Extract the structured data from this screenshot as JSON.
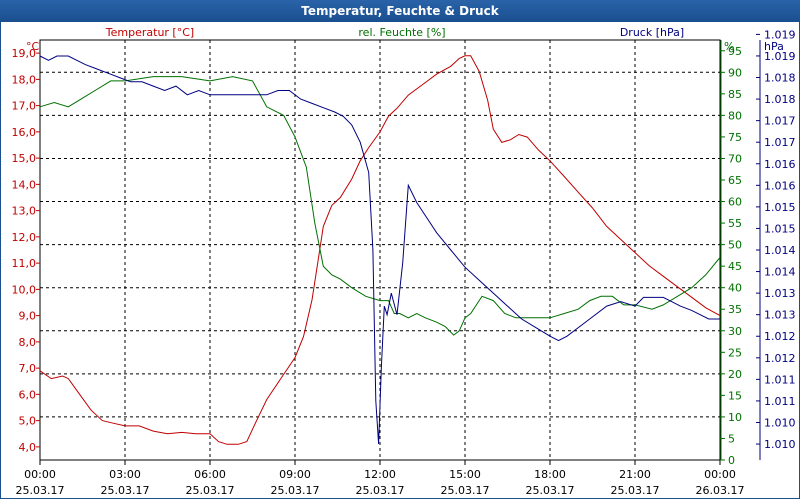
{
  "chart_data": {
    "type": "line",
    "title": "Temperatur, Feuchte & Druck",
    "x_label_time": [
      "00:00",
      "03:00",
      "06:00",
      "09:00",
      "12:00",
      "15:00",
      "18:00",
      "21:00",
      "00:00"
    ],
    "x_label_date": [
      "25.03.17",
      "25.03.17",
      "25.03.17",
      "25.03.17",
      "25.03.17",
      "25.03.17",
      "25.03.17",
      "25.03.17",
      "26.03.17"
    ],
    "xlim": [
      0,
      24
    ],
    "grid": true,
    "axes": {
      "temp": {
        "title": "Temperatur [°C]",
        "unit": "°C",
        "color": "#c00000",
        "range": [
          3.5,
          19.5
        ],
        "ticks": [
          "4,0",
          "5,0",
          "6,0",
          "7,0",
          "8,0",
          "9,0",
          "10,0",
          "11,0",
          "12,0",
          "13,0",
          "14,0",
          "15,0",
          "16,0",
          "17,0",
          "18,0",
          "19,0"
        ]
      },
      "hum": {
        "title": "rel. Feuchte [%]",
        "unit": "%",
        "color": "#007000",
        "range": [
          0,
          97.5
        ],
        "ticks": [
          "0",
          "5",
          "10",
          "15",
          "20",
          "25",
          "30",
          "35",
          "40",
          "45",
          "50",
          "55",
          "60",
          "65",
          "70",
          "75",
          "80",
          "85",
          "90",
          "95"
        ]
      },
      "press": {
        "title": "Druck [hPa]",
        "unit": "hPa",
        "color": "#000080",
        "range": [
          1009.63,
          1019.37
        ],
        "ticks": [
          "1.010",
          "1.010",
          "1.011",
          "1.011",
          "1.012",
          "1.012",
          "1.013",
          "1.013",
          "1.014",
          "1.014",
          "1.015",
          "1.015",
          "1.016",
          "1.016",
          "1.017",
          "1.017",
          "1.018",
          "1.018",
          "1.019",
          "1.019"
        ]
      }
    },
    "series": [
      {
        "name": "Temperatur [°C]",
        "axis": "temp",
        "color": "#c00000",
        "x": [
          0,
          0.4,
          0.8,
          1.0,
          1.4,
          1.8,
          2.2,
          2.6,
          3.0,
          3.5,
          4.0,
          4.5,
          5.0,
          5.5,
          6.0,
          6.3,
          6.6,
          7.0,
          7.3,
          7.6,
          8.0,
          8.5,
          9.0,
          9.3,
          9.6,
          9.8,
          10.0,
          10.3,
          10.6,
          11.0,
          11.3,
          11.6,
          12.0,
          12.3,
          12.6,
          13.0,
          13.5,
          14.0,
          14.5,
          14.8,
          15.0,
          15.2,
          15.5,
          15.8,
          16.0,
          16.3,
          16.6,
          16.9,
          17.2,
          17.6,
          18.0,
          18.5,
          19.0,
          19.5,
          20.0,
          20.5,
          21.0,
          21.5,
          22.0,
          22.5,
          23.0,
          23.5,
          24.0
        ],
        "values": [
          6.9,
          6.6,
          6.7,
          6.6,
          6.0,
          5.4,
          5.0,
          4.9,
          4.8,
          4.8,
          4.6,
          4.5,
          4.55,
          4.5,
          4.5,
          4.2,
          4.1,
          4.1,
          4.2,
          4.9,
          5.8,
          6.6,
          7.4,
          8.2,
          9.6,
          11.0,
          12.4,
          13.2,
          13.5,
          14.2,
          14.9,
          15.4,
          16.0,
          16.6,
          16.9,
          17.4,
          17.8,
          18.2,
          18.5,
          18.8,
          18.9,
          18.9,
          18.3,
          17.2,
          16.1,
          15.6,
          15.7,
          15.9,
          15.8,
          15.3,
          14.9,
          14.3,
          13.7,
          13.1,
          12.4,
          11.9,
          11.4,
          10.9,
          10.5,
          10.1,
          9.7,
          9.3,
          9.0
        ]
      },
      {
        "name": "rel. Feuchte [%]",
        "axis": "hum",
        "color": "#007000",
        "x": [
          0,
          0.5,
          1.0,
          1.5,
          2.0,
          2.5,
          3.0,
          4.0,
          5.0,
          6.0,
          6.8,
          7.5,
          8.0,
          8.6,
          9.0,
          9.4,
          9.7,
          10.0,
          10.3,
          10.6,
          11.0,
          11.5,
          12.0,
          12.3,
          12.5,
          12.7,
          13.0,
          13.3,
          13.6,
          14.0,
          14.3,
          14.6,
          14.8,
          15.0,
          15.2,
          15.6,
          16.0,
          16.4,
          16.8,
          17.3,
          18.0,
          18.5,
          19.0,
          19.4,
          19.8,
          20.2,
          20.6,
          21.0,
          21.6,
          22.0,
          22.5,
          23.0,
          23.5,
          24.0
        ],
        "values": [
          82,
          83,
          82,
          84,
          86,
          88,
          88,
          89,
          89,
          88,
          89,
          88,
          82,
          80,
          75,
          68,
          55,
          45,
          43,
          42,
          40,
          38,
          37,
          37,
          34,
          34,
          33,
          34,
          33,
          32,
          31,
          29,
          30,
          33,
          34,
          38,
          37,
          34,
          33,
          33,
          33,
          34,
          35,
          37,
          38,
          38,
          36,
          36,
          35,
          36,
          38,
          40,
          43,
          47
        ]
      },
      {
        "name": "Druck [hPa]",
        "axis": "press",
        "color": "#000080",
        "x": [
          0,
          0.3,
          0.6,
          1.0,
          1.3,
          1.6,
          2.0,
          2.4,
          2.8,
          3.2,
          3.6,
          4.0,
          4.4,
          4.8,
          5.2,
          5.6,
          6.0,
          6.4,
          6.8,
          7.2,
          7.6,
          8.0,
          8.4,
          8.8,
          9.2,
          9.6,
          10.0,
          10.4,
          10.7,
          11.0,
          11.3,
          11.6,
          11.75,
          11.85,
          11.95,
          12.05,
          12.15,
          12.25,
          12.4,
          12.6,
          12.8,
          13.0,
          13.3,
          13.6,
          14.0,
          14.5,
          15.0,
          15.5,
          16.0,
          16.5,
          17.0,
          17.5,
          18.0,
          18.3,
          18.6,
          19.0,
          19.4,
          20.0,
          20.5,
          21.0,
          21.3,
          21.6,
          22.0,
          22.3,
          22.6,
          23.0,
          23.3,
          23.6,
          24.0
        ],
        "values": [
          1019.0,
          1018.9,
          1019.0,
          1019.0,
          1018.9,
          1018.8,
          1018.7,
          1018.6,
          1018.5,
          1018.4,
          1018.4,
          1018.3,
          1018.2,
          1018.3,
          1018.1,
          1018.2,
          1018.1,
          1018.1,
          1018.1,
          1018.1,
          1018.1,
          1018.1,
          1018.2,
          1018.2,
          1018.0,
          1017.9,
          1017.8,
          1017.7,
          1017.6,
          1017.4,
          1017.0,
          1016.3,
          1014.5,
          1011.0,
          1010.0,
          1011.8,
          1013.2,
          1013.0,
          1013.5,
          1013.0,
          1014.2,
          1016.0,
          1015.6,
          1015.3,
          1014.9,
          1014.5,
          1014.1,
          1013.8,
          1013.5,
          1013.2,
          1012.9,
          1012.7,
          1012.5,
          1012.4,
          1012.5,
          1012.7,
          1012.9,
          1013.2,
          1013.3,
          1013.2,
          1013.4,
          1013.4,
          1013.4,
          1013.3,
          1013.2,
          1013.1,
          1013.0,
          1012.9,
          1012.9
        ]
      }
    ]
  }
}
